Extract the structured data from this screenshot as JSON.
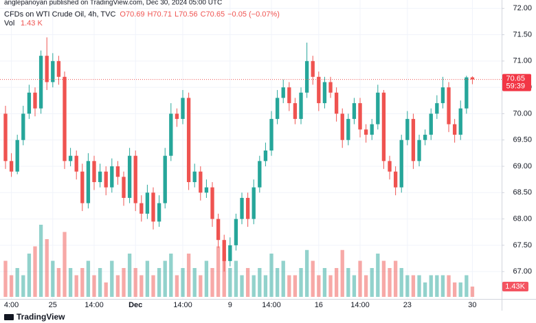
{
  "header": {
    "published": "anglepanoyan published on TradingView.com, Dec 30, 2024 05:00 UTC"
  },
  "footer": {
    "brand": "TradingView"
  },
  "chart_data": {
    "type": "candlestick",
    "symbol": "CFDs on WTI Crude Oil, 4h, TVC",
    "legend_ohlc": [
      "O70.69",
      "H70.71",
      "L70.56",
      "C70.65"
    ],
    "legend_change": "−0.05 (−0.07%)",
    "volume_title": "Vol",
    "volume_label": "1.43 K",
    "volume_axis_label": "1.43K",
    "countdown": "59:39",
    "last_price": 70.65,
    "up_color": "#26a69a",
    "down_color": "#ef5350",
    "grid": true,
    "xlim": [
      -0.93,
      83.95
    ],
    "xticks": [
      {
        "value": 1,
        "label": "4:00"
      },
      {
        "value": 8,
        "label": "25"
      },
      {
        "value": 15,
        "label": "14:00"
      },
      {
        "value": 22,
        "label": "Dec"
      },
      {
        "value": 30,
        "label": "14:00"
      },
      {
        "value": 38,
        "label": "9"
      },
      {
        "value": 45,
        "label": "14:00"
      },
      {
        "value": 53,
        "label": "16"
      },
      {
        "value": 60,
        "label": "14:00"
      },
      {
        "value": 68,
        "label": "23"
      },
      {
        "value": 79,
        "label": "30"
      }
    ],
    "ylim": [
      66.48,
      72.16
    ],
    "yticks": [
      {
        "value": 67,
        "label": "67.00"
      },
      {
        "value": 67.5,
        "label": "67.50"
      },
      {
        "value": 68,
        "label": "68.00"
      },
      {
        "value": 68.5,
        "label": "68.50"
      },
      {
        "value": 69,
        "label": "69.00"
      },
      {
        "value": 69.5,
        "label": "69.50"
      },
      {
        "value": 70,
        "label": "70.00"
      },
      {
        "value": 70.5,
        "label": "70.50"
      },
      {
        "value": 71,
        "label": "71.00"
      },
      {
        "value": 71.5,
        "label": "71.50"
      },
      {
        "value": 72,
        "label": "72.00"
      }
    ],
    "volume_lim": [
      0,
      10
    ],
    "open": [
      70.0,
      69.1,
      68.9,
      69.5,
      70.0,
      70.4,
      70.1,
      71.1,
      70.6,
      71.0,
      70.7,
      69.1,
      69.2,
      68.9,
      68.3,
      69.1,
      68.7,
      68.9,
      68.6,
      69.0,
      68.8,
      68.4,
      69.2,
      68.3,
      68.1,
      68.5,
      67.95,
      68.3,
      69.2,
      70.0,
      69.9,
      70.3,
      68.7,
      68.9,
      68.5,
      68.6,
      68.0,
      67.6,
      67.2,
      67.5,
      68.0,
      68.4,
      68.0,
      68.6,
      69.1,
      69.3,
      69.9,
      70.3,
      70.5,
      70.2,
      69.9,
      70.4,
      71.0,
      70.7,
      70.2,
      70.6,
      70.4,
      70.0,
      69.5,
      69.9,
      70.2,
      69.7,
      69.6,
      69.8,
      70.4,
      69.1,
      68.9,
      68.6,
      69.5,
      69.9,
      69.1,
      69.5,
      69.6,
      70.0,
      70.2,
      70.5,
      69.8,
      69.6,
      70.1,
      70.69
    ],
    "high": [
      70.15,
      69.25,
      69.6,
      70.15,
      70.55,
      70.5,
      71.2,
      71.45,
      71.15,
      71.1,
      70.8,
      69.35,
      69.3,
      69.05,
      69.25,
      69.2,
      69.05,
      69.0,
      69.15,
      69.1,
      68.9,
      69.35,
      69.3,
      68.45,
      68.65,
      68.6,
      68.45,
      69.35,
      70.2,
      70.1,
      70.45,
      70.4,
      69.05,
      69.0,
      68.75,
      68.7,
      68.1,
      67.7,
      67.65,
      68.1,
      68.5,
      68.5,
      68.75,
      69.2,
      69.45,
      70.05,
      70.45,
      70.65,
      70.6,
      70.3,
      70.5,
      71.35,
      71.1,
      70.8,
      70.7,
      70.7,
      70.5,
      70.1,
      70.0,
      70.3,
      70.3,
      69.8,
      69.9,
      70.55,
      70.45,
      69.2,
      69.0,
      69.6,
      70.05,
      70.0,
      69.6,
      69.7,
      70.1,
      70.35,
      70.7,
      70.6,
      69.9,
      70.25,
      70.72,
      70.71
    ],
    "low": [
      68.95,
      68.8,
      68.85,
      69.4,
      69.9,
      69.95,
      70.0,
      70.45,
      70.5,
      70.55,
      68.95,
      69.0,
      68.75,
      68.15,
      68.2,
      68.55,
      68.6,
      68.45,
      68.5,
      68.65,
      68.25,
      68.3,
      68.15,
      67.95,
      68.0,
      67.8,
      67.85,
      68.2,
      69.1,
      69.75,
      69.8,
      68.55,
      68.6,
      68.35,
      68.4,
      67.85,
      67.45,
      67.0,
      67.1,
      67.4,
      67.9,
      67.85,
      67.9,
      68.5,
      69.0,
      69.2,
      69.8,
      70.2,
      70.05,
      69.8,
      69.8,
      70.3,
      70.55,
      70.05,
      70.1,
      70.3,
      69.85,
      69.35,
      69.4,
      69.8,
      69.55,
      69.45,
      69.5,
      69.7,
      68.95,
      68.75,
      68.45,
      68.5,
      69.4,
      68.95,
      69.0,
      69.4,
      69.5,
      69.9,
      70.1,
      69.65,
      69.45,
      69.5,
      70.0,
      70.56
    ],
    "close": [
      69.1,
      68.9,
      69.5,
      70.0,
      70.4,
      70.1,
      71.1,
      70.6,
      71.0,
      70.7,
      69.1,
      69.2,
      68.9,
      68.3,
      69.1,
      68.7,
      68.9,
      68.6,
      69.0,
      68.8,
      68.4,
      69.2,
      68.3,
      68.1,
      68.5,
      67.95,
      68.3,
      69.2,
      70.0,
      69.9,
      70.3,
      68.7,
      68.9,
      68.5,
      68.6,
      68.0,
      67.6,
      67.2,
      67.5,
      68.0,
      68.4,
      68.0,
      68.6,
      69.1,
      69.3,
      69.9,
      70.3,
      70.5,
      70.2,
      69.9,
      70.4,
      71.0,
      70.7,
      70.2,
      70.6,
      70.4,
      70.0,
      69.5,
      69.9,
      70.2,
      69.7,
      69.6,
      69.8,
      70.4,
      69.1,
      68.9,
      68.6,
      69.5,
      69.9,
      69.1,
      69.5,
      69.6,
      70.0,
      70.2,
      70.5,
      69.8,
      69.6,
      70.1,
      70.69,
      70.65
    ],
    "volumes": [
      5,
      3,
      4,
      3,
      6,
      7,
      10,
      8,
      5,
      4,
      9,
      4,
      3,
      4,
      5,
      3,
      4,
      2,
      5,
      3,
      4,
      6,
      4,
      3,
      5,
      3,
      4,
      5,
      6,
      3,
      4,
      6,
      4,
      3,
      5,
      4,
      7,
      6,
      4,
      5,
      3,
      4,
      3,
      4,
      3,
      6,
      4,
      5,
      3,
      3,
      4,
      6.5,
      5,
      3,
      4,
      3,
      4,
      6.5,
      4,
      3,
      5,
      3,
      4,
      6,
      5,
      4,
      5,
      4,
      3,
      3,
      3,
      2,
      3,
      3,
      3,
      3,
      2,
      2,
      3,
      1.43
    ]
  }
}
